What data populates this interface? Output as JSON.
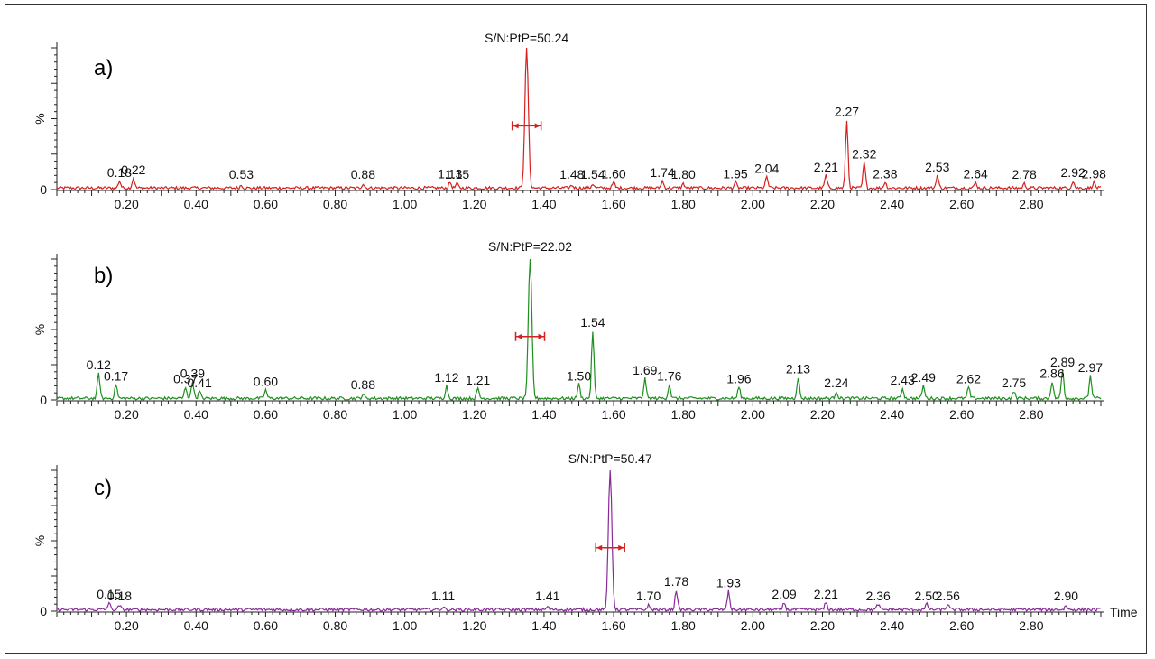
{
  "chart_data": [
    {
      "type": "line",
      "panel_label": "a)",
      "color": "#d62020",
      "ylabel": "%",
      "y_tick_label": "0",
      "xlim": [
        0.0,
        3.0
      ],
      "x_tick_labels": [
        "0.20",
        "0.40",
        "0.60",
        "0.80",
        "1.00",
        "1.20",
        "1.40",
        "1.60",
        "1.80",
        "2.00",
        "2.20",
        "2.40",
        "2.60",
        "2.80"
      ],
      "sn_annotation": "S/N:PtP=50.24",
      "main_peak": {
        "x": 1.35,
        "y": 100
      },
      "peaks": [
        {
          "label": "0.18",
          "x": 0.18,
          "y": 5
        },
        {
          "label": "0.22",
          "x": 0.22,
          "y": 7
        },
        {
          "label": "0.53",
          "x": 0.53,
          "y": 2
        },
        {
          "label": "0.88",
          "x": 0.88,
          "y": 3
        },
        {
          "label": "1.13",
          "x": 1.13,
          "y": 4
        },
        {
          "label": "1.15",
          "x": 1.15,
          "y": 3
        },
        {
          "label": "1.48",
          "x": 1.48,
          "y": 2
        },
        {
          "label": "1.54",
          "x": 1.54,
          "y": 3
        },
        {
          "label": "1.60",
          "x": 1.6,
          "y": 4
        },
        {
          "label": "1.74",
          "x": 1.74,
          "y": 5
        },
        {
          "label": "1.80",
          "x": 1.8,
          "y": 3
        },
        {
          "label": "1.95",
          "x": 1.95,
          "y": 4
        },
        {
          "label": "2.04",
          "x": 2.04,
          "y": 8
        },
        {
          "label": "2.21",
          "x": 2.21,
          "y": 9
        },
        {
          "label": "2.27",
          "x": 2.27,
          "y": 48
        },
        {
          "label": "2.32",
          "x": 2.32,
          "y": 18
        },
        {
          "label": "2.38",
          "x": 2.38,
          "y": 4
        },
        {
          "label": "2.53",
          "x": 2.53,
          "y": 9
        },
        {
          "label": "2.64",
          "x": 2.64,
          "y": 4
        },
        {
          "label": "2.78",
          "x": 2.78,
          "y": 3
        },
        {
          "label": "2.92",
          "x": 2.92,
          "y": 5
        },
        {
          "label": "2.98",
          "x": 2.98,
          "y": 4
        }
      ]
    },
    {
      "type": "line",
      "panel_label": "b)",
      "color": "#1f8f1f",
      "ylabel": "%",
      "y_tick_label": "0",
      "xlim": [
        0.0,
        3.0
      ],
      "x_tick_labels": [
        "0.20",
        "0.40",
        "0.60",
        "0.80",
        "1.00",
        "1.20",
        "1.40",
        "1.60",
        "1.80",
        "2.00",
        "2.20",
        "2.40",
        "2.60",
        "2.80"
      ],
      "sn_annotation": "S/N:PtP=22.02",
      "main_peak": {
        "x": 1.36,
        "y": 100
      },
      "peaks": [
        {
          "label": "0.12",
          "x": 0.12,
          "y": 18
        },
        {
          "label": "0.17",
          "x": 0.17,
          "y": 10
        },
        {
          "label": "0.37",
          "x": 0.37,
          "y": 8
        },
        {
          "label": "0.39",
          "x": 0.39,
          "y": 12
        },
        {
          "label": "0.41",
          "x": 0.41,
          "y": 5
        },
        {
          "label": "0.60",
          "x": 0.6,
          "y": 6
        },
        {
          "label": "0.88",
          "x": 0.88,
          "y": 3
        },
        {
          "label": "1.12",
          "x": 1.12,
          "y": 9
        },
        {
          "label": "1.21",
          "x": 1.21,
          "y": 7
        },
        {
          "label": "1.50",
          "x": 1.5,
          "y": 10
        },
        {
          "label": "1.54",
          "x": 1.54,
          "y": 48
        },
        {
          "label": "1.69",
          "x": 1.69,
          "y": 14
        },
        {
          "label": "1.76",
          "x": 1.76,
          "y": 10
        },
        {
          "label": "1.96",
          "x": 1.96,
          "y": 8
        },
        {
          "label": "2.13",
          "x": 2.13,
          "y": 15
        },
        {
          "label": "2.24",
          "x": 2.24,
          "y": 5
        },
        {
          "label": "2.43",
          "x": 2.43,
          "y": 7
        },
        {
          "label": "2.49",
          "x": 2.49,
          "y": 9
        },
        {
          "label": "2.62",
          "x": 2.62,
          "y": 8
        },
        {
          "label": "2.75",
          "x": 2.75,
          "y": 5
        },
        {
          "label": "2.86",
          "x": 2.86,
          "y": 12
        },
        {
          "label": "2.89",
          "x": 2.89,
          "y": 20
        },
        {
          "label": "2.97",
          "x": 2.97,
          "y": 16
        }
      ]
    },
    {
      "type": "line",
      "panel_label": "c)",
      "color": "#8a2a9a",
      "ylabel": "%",
      "y_tick_label": "0",
      "xlabel": "Time",
      "xlim": [
        0.0,
        3.0
      ],
      "x_tick_labels": [
        "0.20",
        "0.40",
        "0.60",
        "0.80",
        "1.00",
        "1.20",
        "1.40",
        "1.60",
        "1.80",
        "2.00",
        "2.20",
        "2.40",
        "2.60",
        "2.80"
      ],
      "sn_annotation": "S/N:PtP=50.47",
      "main_peak": {
        "x": 1.59,
        "y": 100
      },
      "peaks": [
        {
          "label": "0.15",
          "x": 0.15,
          "y": 5
        },
        {
          "label": "0.18",
          "x": 0.18,
          "y": 3
        },
        {
          "label": "1.11",
          "x": 1.11,
          "y": 2
        },
        {
          "label": "1.41",
          "x": 1.41,
          "y": 2
        },
        {
          "label": "1.70",
          "x": 1.7,
          "y": 3
        },
        {
          "label": "1.78",
          "x": 1.78,
          "y": 14
        },
        {
          "label": "1.93",
          "x": 1.93,
          "y": 13
        },
        {
          "label": "2.09",
          "x": 2.09,
          "y": 5
        },
        {
          "label": "2.21",
          "x": 2.21,
          "y": 5
        },
        {
          "label": "2.36",
          "x": 2.36,
          "y": 4
        },
        {
          "label": "2.50",
          "x": 2.5,
          "y": 4
        },
        {
          "label": "2.56",
          "x": 2.56,
          "y": 4
        },
        {
          "label": "2.90",
          "x": 2.9,
          "y": 3
        }
      ]
    }
  ]
}
